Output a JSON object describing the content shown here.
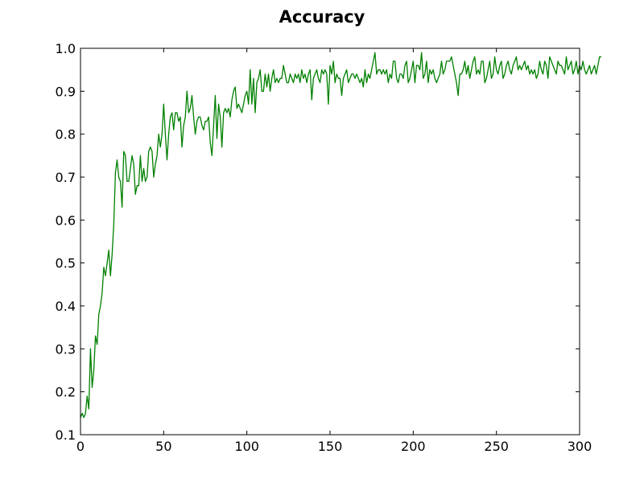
{
  "chart_data": {
    "type": "line",
    "title": "Accuracy",
    "xlabel": "",
    "ylabel": "",
    "xlim": [
      0,
      300
    ],
    "ylim": [
      0.1,
      1.0
    ],
    "xticks": [
      0,
      50,
      100,
      150,
      200,
      250,
      300
    ],
    "yticks": [
      0.1,
      0.2,
      0.3,
      0.4,
      0.5,
      0.6,
      0.7,
      0.8,
      0.9,
      1.0
    ],
    "xtick_labels": [
      "0",
      "50",
      "100",
      "150",
      "200",
      "250",
      "300"
    ],
    "ytick_labels": [
      "0.1",
      "0.2",
      "0.3",
      "0.4",
      "0.5",
      "0.6",
      "0.7",
      "0.8",
      "0.9",
      "1.0"
    ],
    "grid": false,
    "legend": "none",
    "series": [
      {
        "color": "#008000",
        "x_start": 0,
        "x_step": 1,
        "values": [
          0.14,
          0.15,
          0.14,
          0.15,
          0.19,
          0.16,
          0.3,
          0.21,
          0.25,
          0.33,
          0.31,
          0.38,
          0.4,
          0.43,
          0.49,
          0.47,
          0.5,
          0.53,
          0.47,
          0.52,
          0.59,
          0.71,
          0.74,
          0.7,
          0.69,
          0.63,
          0.76,
          0.75,
          0.69,
          0.69,
          0.72,
          0.75,
          0.73,
          0.66,
          0.68,
          0.68,
          0.75,
          0.69,
          0.72,
          0.69,
          0.7,
          0.76,
          0.77,
          0.76,
          0.7,
          0.73,
          0.75,
          0.8,
          0.77,
          0.8,
          0.87,
          0.8,
          0.74,
          0.8,
          0.84,
          0.85,
          0.81,
          0.85,
          0.85,
          0.83,
          0.84,
          0.77,
          0.82,
          0.84,
          0.9,
          0.85,
          0.86,
          0.89,
          0.84,
          0.8,
          0.83,
          0.84,
          0.84,
          0.82,
          0.81,
          0.83,
          0.83,
          0.84,
          0.78,
          0.75,
          0.82,
          0.89,
          0.79,
          0.87,
          0.84,
          0.77,
          0.85,
          0.86,
          0.85,
          0.86,
          0.84,
          0.88,
          0.9,
          0.91,
          0.86,
          0.87,
          0.86,
          0.85,
          0.87,
          0.89,
          0.9,
          0.87,
          0.95,
          0.87,
          0.93,
          0.85,
          0.92,
          0.93,
          0.95,
          0.9,
          0.9,
          0.94,
          0.91,
          0.94,
          0.9,
          0.93,
          0.95,
          0.92,
          0.93,
          0.92,
          0.93,
          0.93,
          0.96,
          0.94,
          0.92,
          0.92,
          0.94,
          0.93,
          0.92,
          0.94,
          0.93,
          0.94,
          0.92,
          0.95,
          0.93,
          0.94,
          0.92,
          0.94,
          0.95,
          0.88,
          0.93,
          0.94,
          0.95,
          0.93,
          0.92,
          0.95,
          0.94,
          0.95,
          0.94,
          0.87,
          0.96,
          0.94,
          0.97,
          0.92,
          0.94,
          0.93,
          0.93,
          0.89,
          0.93,
          0.94,
          0.95,
          0.92,
          0.93,
          0.94,
          0.94,
          0.93,
          0.94,
          0.93,
          0.92,
          0.93,
          0.91,
          0.95,
          0.92,
          0.94,
          0.93,
          0.95,
          0.97,
          0.99,
          0.94,
          0.95,
          0.95,
          0.94,
          0.95,
          0.94,
          0.95,
          0.92,
          0.94,
          0.93,
          0.97,
          0.97,
          0.93,
          0.92,
          0.94,
          0.94,
          0.93,
          0.96,
          0.97,
          0.92,
          0.93,
          0.95,
          0.97,
          0.92,
          0.96,
          0.96,
          0.95,
          0.99,
          0.93,
          0.94,
          0.97,
          0.92,
          0.95,
          0.94,
          0.95,
          0.93,
          0.92,
          0.93,
          0.94,
          0.97,
          0.94,
          0.95,
          0.97,
          0.97,
          0.97,
          0.98,
          0.96,
          0.94,
          0.92,
          0.89,
          0.94,
          0.94,
          0.95,
          0.97,
          0.94,
          0.96,
          0.93,
          0.95,
          0.97,
          0.98,
          0.94,
          0.95,
          0.94,
          0.97,
          0.97,
          0.92,
          0.93,
          0.95,
          0.97,
          0.93,
          0.94,
          0.98,
          0.95,
          0.94,
          0.96,
          0.97,
          0.93,
          0.94,
          0.96,
          0.97,
          0.95,
          0.94,
          0.96,
          0.97,
          0.98,
          0.95,
          0.96,
          0.95,
          0.96,
          0.97,
          0.95,
          0.96,
          0.94,
          0.95,
          0.94,
          0.95,
          0.93,
          0.94,
          0.97,
          0.95,
          0.94,
          0.97,
          0.96,
          0.93,
          0.98,
          0.97,
          0.96,
          0.95,
          0.94,
          0.97,
          0.96,
          0.96,
          0.95,
          0.94,
          0.98,
          0.95,
          0.96,
          0.97,
          0.94,
          0.95,
          0.97,
          0.94,
          0.96,
          0.95,
          0.97,
          0.95,
          0.94,
          0.95,
          0.96,
          0.94,
          0.95,
          0.96,
          0.94,
          0.96,
          0.98,
          0.98
        ]
      }
    ]
  }
}
